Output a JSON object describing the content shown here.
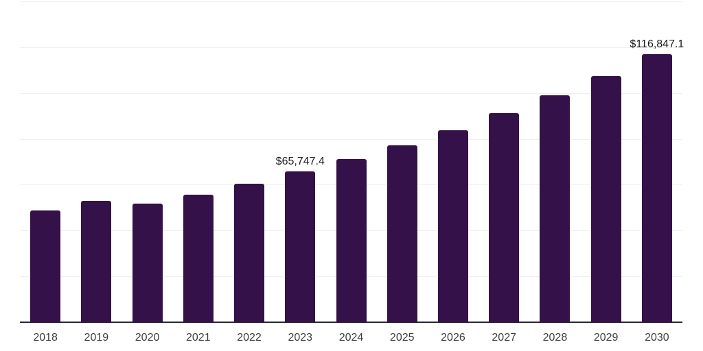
{
  "chart_data": {
    "type": "bar",
    "title": "",
    "xlabel": "",
    "ylabel": "",
    "categories": [
      "2018",
      "2019",
      "2020",
      "2021",
      "2022",
      "2023",
      "2024",
      "2025",
      "2026",
      "2027",
      "2028",
      "2029",
      "2030"
    ],
    "values": [
      48700,
      52900,
      51700,
      55600,
      60400,
      65747.4,
      71200,
      77100,
      83900,
      91200,
      99000,
      107500,
      116847.1
    ],
    "data_labels": {
      "2023": "$65,747.4",
      "2030": "$116,847.1"
    },
    "ylim": [
      0,
      140000
    ],
    "gridline_step": 20000,
    "grid": true,
    "y_axis_tick_labels_visible": false,
    "legend": "none",
    "colors": {
      "bar": "#341148",
      "gridline": "#f0f0f2",
      "axis_line": "#262630",
      "data_label_text": "#1a1a1a",
      "x_tick_text": "#3d3d3d",
      "background": "#ffffff"
    }
  }
}
